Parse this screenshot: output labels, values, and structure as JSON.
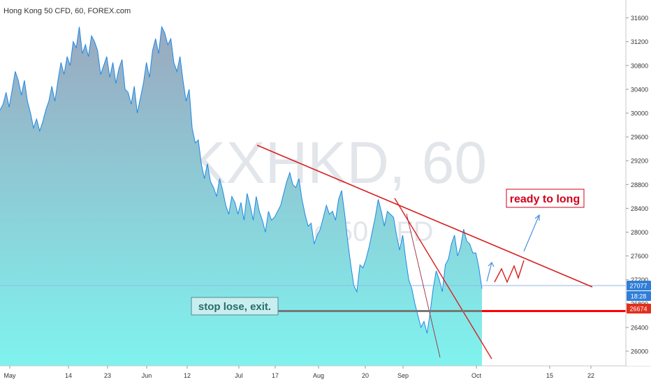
{
  "chart_data": {
    "type": "area",
    "title": "Hong Kong 50 CFD, 60, FOREX.com",
    "watermark": {
      "symbol": "HKXHKD, 60",
      "name": "Hong Kong 50 CFD"
    },
    "x_ticks": [
      "May",
      "14",
      "23",
      "Jun",
      "12",
      "Jul",
      "17",
      "Aug",
      "20",
      "Sep",
      "Oct",
      "15",
      "22"
    ],
    "y_ticks": [
      26000,
      26400,
      26800,
      27200,
      27600,
      28000,
      28400,
      28800,
      29200,
      29600,
      30000,
      30400,
      30800,
      31200,
      31600
    ],
    "ylim": [
      25600,
      31900
    ],
    "series": [
      {
        "values": [
          30050,
          30150,
          30350,
          30100,
          30400,
          30700,
          30550,
          30300,
          30550,
          30200,
          30000,
          29750,
          29900,
          29700,
          29850,
          30050,
          30200,
          30450,
          30200,
          30550,
          30850,
          30650,
          30950,
          30800,
          31200,
          31100,
          31450,
          31000,
          31150,
          30950,
          31300,
          31200,
          31050,
          30650,
          30800,
          30950,
          30600,
          30850,
          30500,
          30750,
          30900,
          30400,
          30350,
          30150,
          30450,
          30000,
          30250,
          30500,
          30850,
          30600,
          31050,
          31250,
          31000,
          31450,
          31350,
          31150,
          31250,
          30850,
          30700,
          30950,
          30550,
          30200,
          30400,
          29750,
          29500,
          29550,
          29150,
          28900,
          29150,
          28850,
          28750,
          28600,
          28900,
          28700,
          28450,
          28300,
          28600,
          28500,
          28300,
          28500,
          28200,
          28650,
          28450,
          28200,
          28600,
          28350,
          28200,
          28000,
          28350,
          28200,
          28250,
          28350,
          28450,
          28650,
          28850,
          29000,
          28800,
          28750,
          28900,
          28550,
          28300,
          28100,
          28150,
          27800,
          27950,
          28050,
          28250,
          28450,
          28300,
          28350,
          28200,
          28550,
          28700,
          28300,
          27850,
          27450,
          27100,
          27000,
          27450,
          27400,
          27550,
          27750,
          28000,
          28250,
          28550,
          28350,
          28100,
          28350,
          28300,
          28250,
          27950,
          27700,
          27950,
          27550,
          27200,
          27050,
          26800,
          26600,
          26400,
          26500,
          26300,
          26650,
          27050,
          27350,
          27200,
          27000,
          27450,
          27550,
          27800,
          27950,
          27600,
          27750,
          28050,
          27850,
          27800,
          27650,
          27650,
          27400,
          27050
        ]
      }
    ],
    "annotations": {
      "ready_label": "ready to long",
      "stop_label": "stop lose, exit."
    },
    "price_labels": {
      "last": "27077",
      "countdown": "18:28",
      "stop": "26674"
    },
    "stop_level": 26674,
    "colors": {
      "line": "#1e88e5",
      "area_top": "#9aa8bf",
      "area_bottom": "#7ff3ef",
      "trend": "#d81e1e",
      "thin_trend": "#9b2b3f",
      "stop_line": "#ff0000",
      "stop_segment": "#777777",
      "ready_text": "#d0021b",
      "ready_border": "#d0021b",
      "stop_text": "#2a6b6b",
      "stop_fill": "#c9eef0",
      "stop_border": "#5a8a8a",
      "arrow": "#4a90d9",
      "price_line": "#8fb6e8",
      "badge_blue": "#2f7ed8",
      "badge_red": "#e0301e"
    }
  }
}
